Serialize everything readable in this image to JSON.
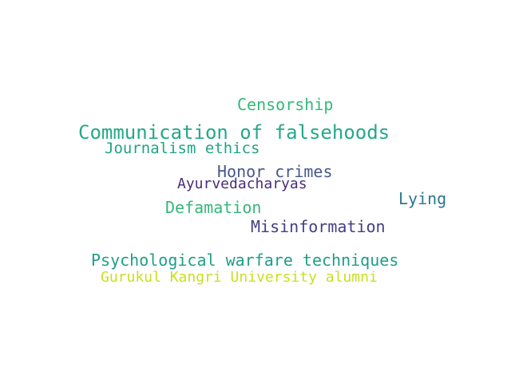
{
  "words": [
    {
      "text": "Censorship",
      "color": "#35b779"
    },
    {
      "text": "Communication of falsehoods",
      "color": "#26a88a"
    },
    {
      "text": "Journalism ethics",
      "color": "#21a386"
    },
    {
      "text": "Honor crimes",
      "color": "#46588b"
    },
    {
      "text": "Ayurvedacharyas",
      "color": "#472d7b"
    },
    {
      "text": "Lying",
      "color": "#2a788e"
    },
    {
      "text": "Defamation",
      "color": "#35b779"
    },
    {
      "text": "Misinformation",
      "color": "#433e85"
    },
    {
      "text": "Psychological warfare techniques",
      "color": "#1f9e89"
    },
    {
      "text": "Gurukul Kangri University alumni",
      "color": "#c8e020"
    }
  ]
}
